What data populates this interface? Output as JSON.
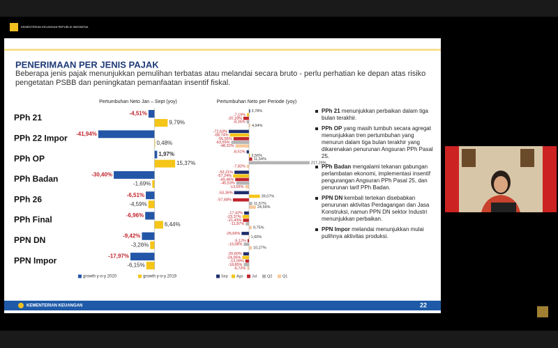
{
  "header": {
    "org": "KEMENTERIAN KEUANGAN REPUBLIK INDONESIA"
  },
  "slide": {
    "title": "PENERIMAAN PER JENIS PAJAK",
    "subtitle": "Beberapa jenis pajak menunjukkan pemulihan terbatas atau melandai secara bruto - perlu perhatian ke depan atas risiko pengetatan PSBB dan peningkatan pemanfaatan insentif fiskal.",
    "footer": "KEMENTERIAN KEUANGAN",
    "page": "22",
    "bullets": [
      {
        "bold": "PPh 21",
        "text": " menunjukkan perbaikan dalam tiga bulan terakhir."
      },
      {
        "bold": "PPh OP",
        "text": " yang masih tumbuh secara agregat menunjukkan tren pertumbuhan yang menurun dalam tiga bulan terakhir yang dikarenakan penurunan Angsuran PPh Pasal 25."
      },
      {
        "bold": "PPh Badan",
        "text": " mengalami tekanan gabungan perlambatan ekonomi, implementasi insentif pengurangan Angsuran PPh Pasal 25, dan penurunan tarif PPh Badan."
      },
      {
        "bold": "PPN DN",
        "text": " kembali tertekan disebabkan penurunan aktivitas Perdagangan dan Jasa Konstruksi, namun PPN DN sektor Industri menunjukkan perbaikan."
      },
      {
        "bold": "PPN Impor",
        "text": " melandai menunjukkan mulai pulihnya aktivitas produksi."
      }
    ]
  },
  "chart_data": [
    {
      "type": "hbar",
      "title": "Pertumbuhan Neto Jan – Sept (yoy)",
      "categories": [
        "PPh 21",
        "PPh 22 Impor",
        "PPh OP",
        "PPh Badan",
        "PPh 26",
        "PPh Final",
        "PPN DN",
        "PPN Impor"
      ],
      "xlim": [
        -45,
        20
      ],
      "series": [
        {
          "name": "growth y-o-y 2020",
          "color": "#2456a8",
          "values": [
            -4.51,
            -41.94,
            1.97,
            -30.4,
            -6.51,
            -6.96,
            -9.42,
            -17.97
          ],
          "value_labels": [
            "-4,51%",
            "-41,94%",
            "1,97%",
            "-30,40%",
            "-6,51%",
            "-6,96%",
            "-9,42%",
            "-17,97%"
          ]
        },
        {
          "name": "growth y-o-y 2019",
          "color": "#f5c518",
          "values": [
            9.79,
            0.48,
            15.37,
            -1.69,
            -4.59,
            6.44,
            -3.26,
            -6.15
          ],
          "value_labels": [
            "9,79%",
            "0,48%",
            "15,37%",
            "-1,69%",
            "-4,59%",
            "6,44%",
            "-3,26%",
            "-6,15%"
          ]
        }
      ]
    },
    {
      "type": "hbar",
      "title": "Pertumbuhan Neto per Periode (yoy)",
      "categories": [
        "PPh 21",
        "PPh 22 Impor",
        "PPh OP",
        "PPh Badan",
        "PPh 26",
        "PPh Final",
        "PPN DN",
        "PPN Impor"
      ],
      "xlim": [
        -80,
        220
      ],
      "series": [
        {
          "name": "Sep",
          "color": "#1f2d6b",
          "values": [
            3.78,
            -72.63,
            -8.51,
            -52.21,
            -53.36,
            -17.42,
            -26.66,
            -20.6
          ],
          "value_labels": [
            "3,78%",
            "-72,63%",
            "-8,51%",
            "-52,21%",
            "-53,36%",
            "-17,42%",
            "-26,66%",
            "-20,60%"
          ]
        },
        {
          "name": "Ags",
          "color": "#f5c518",
          "values": [
            -7.19,
            -68.74,
            3.56,
            -57.24,
            39.07,
            -23.37,
            1.6,
            -24.06
          ],
          "value_labels": [
            "-7,19%",
            "-68,74%",
            "3,56%",
            "-57,24%",
            "39,07%",
            "-23,37%",
            "1,60%",
            "-24,06%"
          ]
        },
        {
          "name": "Jul",
          "color": "#c0242c",
          "values": [
            -20.18,
            -55.55,
            11.54,
            -49.46,
            -57.68,
            -21.43,
            -5.12,
            -13.09
          ],
          "value_labels": [
            "-20,18%",
            "-55,55%",
            "11,54%",
            "-49,46%",
            "-57,68%",
            "-21,43%",
            "-5,12%",
            "-13,09%"
          ]
        },
        {
          "name": "Q2",
          "color": "#b4b4b4",
          "values": [
            -8.35,
            -63.55,
            217.29,
            -45.53,
            11.57,
            -11.87,
            -19.08,
            -18.85
          ],
          "value_labels": [
            "-8,35%",
            "-63,55%",
            "217,29%",
            "-45,53%",
            "11,57%",
            "-11,87%",
            "-19,08%",
            "-18,85%"
          ]
        },
        {
          "name": "Q1",
          "color": "#f6c99c",
          "values": [
            4.94,
            -48.32,
            -7.82,
            -13.56,
            24.59,
            9.75,
            10.27,
            -6.72
          ],
          "value_labels": [
            "4,94%",
            "-48,32%",
            "-7,82%",
            "-13,56%",
            "24,59%",
            "9,75%",
            "10,27%",
            "-6,72%"
          ]
        }
      ]
    }
  ]
}
